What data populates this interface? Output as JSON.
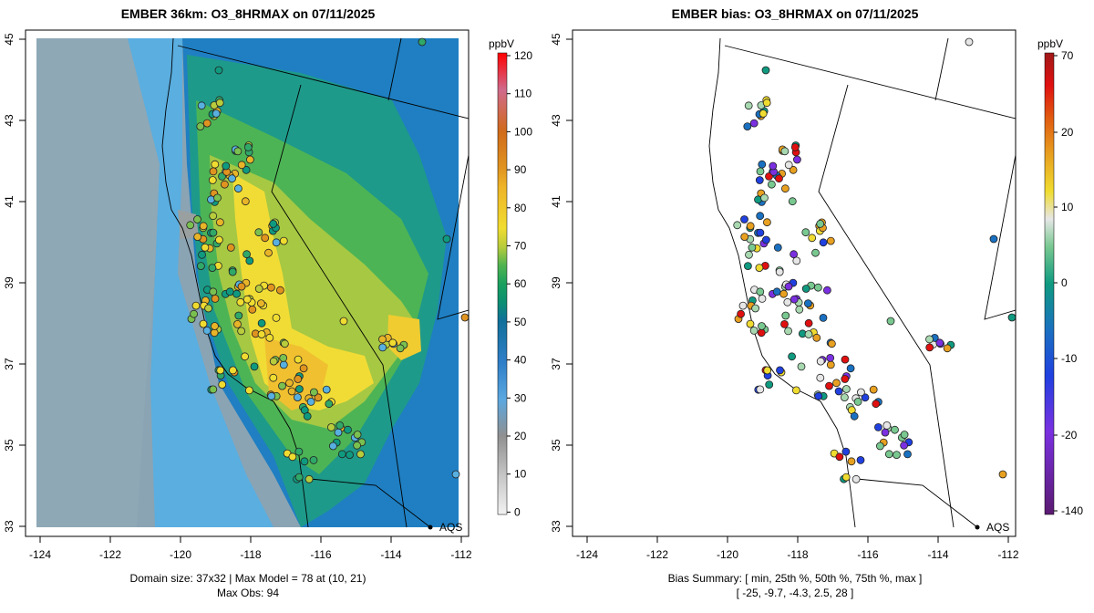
{
  "left_panel": {
    "title": "EMBER 36km: O3_8HRMAX on 07/11/2025",
    "legend_unit": "ppbV",
    "legend_ticks": [
      "120",
      "110",
      "100",
      "90",
      "80",
      "70",
      "60",
      "50",
      "40",
      "30",
      "20",
      "10",
      "0"
    ],
    "caption_line1": "Domain size: 37x32 | Max Model = 78 at (10, 21)",
    "caption_line2": "Max Obs: 94",
    "site_label": "AQS"
  },
  "right_panel": {
    "title": "EMBER bias: O3_8HRMAX on 07/11/2025",
    "legend_unit": "ppbV",
    "legend_ticks": [
      "70",
      "20",
      "10",
      "0",
      "-10",
      "-20",
      "-140"
    ],
    "caption_line1": "Bias Summary: [ min, 25th %, 50th %, 75th %, max ]",
    "caption_line2": "[ -25,   -9.7,   -4.3,   2.5,   28 ]",
    "site_label": "AQS"
  },
  "axes": {
    "x_ticks": [
      "-124",
      "-122",
      "-120",
      "-118",
      "-116",
      "-114",
      "-112"
    ],
    "y_ticks": [
      "33",
      "35",
      "37",
      "39",
      "41",
      "43",
      "45"
    ]
  },
  "colors": {
    "frame": "#000000",
    "ocean_model": "#8aa4b4"
  }
}
